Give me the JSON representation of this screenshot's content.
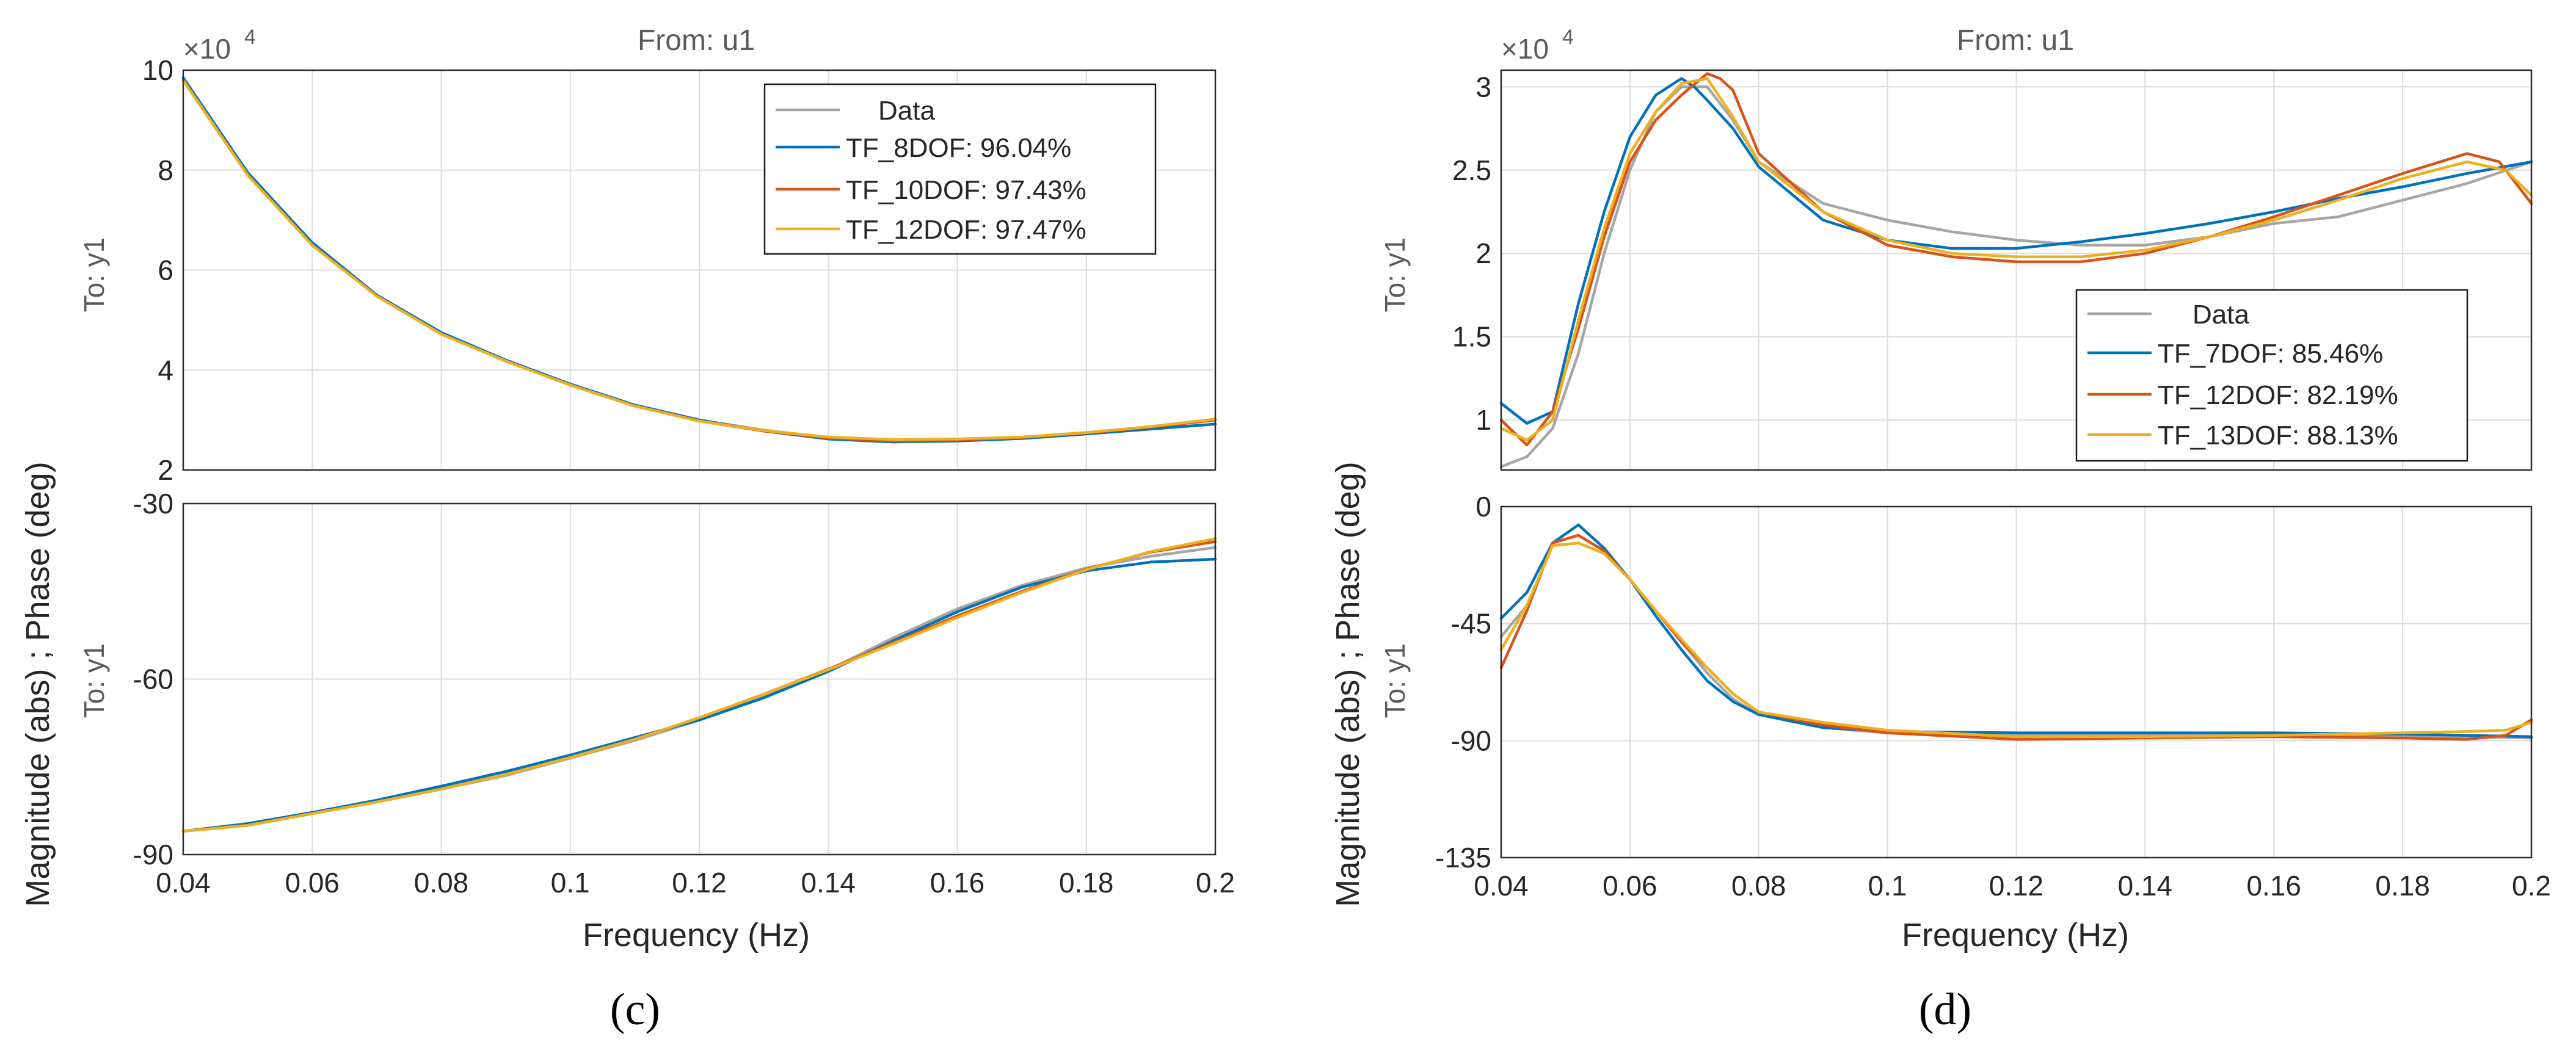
{
  "chart_data": [
    {
      "id": "c",
      "type": "line",
      "subplot_label": "(c)",
      "title": "From: u1",
      "ylabel": "Magnitude (abs) ; Phase (deg)",
      "xlabel": "Frequency  (Hz)",
      "x_ticks": [
        "0.04",
        "0.06",
        "0.08",
        "0.1",
        "0.12",
        "0.14",
        "0.16",
        "0.18",
        "0.2"
      ],
      "xlim": [
        0.04,
        0.2
      ],
      "colors": {
        "Data": "#a6a6a6",
        "TF_8DOF": "#0072bd",
        "TF_10DOF": "#d95319",
        "TF_12DOF": "#edb120"
      },
      "magnitude": {
        "row_label": "To: y1",
        "exponent_label": "×10",
        "exponent_power": "4",
        "ylim": [
          2,
          10
        ],
        "y_ticks": [
          "10",
          "8",
          "6",
          "4",
          "2"
        ],
        "legend": [
          "Data",
          "TF_8DOF: 96.04%",
          "TF_10DOF: 97.43%",
          "TF_12DOF: 97.47%"
        ],
        "series": [
          {
            "name": "Data",
            "x": [
              0.04,
              0.05,
              0.06,
              0.07,
              0.08,
              0.09,
              0.1,
              0.11,
              0.12,
              0.13,
              0.14,
              0.15,
              0.16,
              0.17,
              0.18,
              0.19,
              0.2
            ],
            "values": [
              9.8,
              7.9,
              6.5,
              5.5,
              4.75,
              4.2,
              3.7,
              3.3,
              3.0,
              2.8,
              2.65,
              2.6,
              2.6,
              2.65,
              2.75,
              2.85,
              3.0
            ]
          },
          {
            "name": "TF_8DOF",
            "x": [
              0.04,
              0.05,
              0.06,
              0.07,
              0.08,
              0.09,
              0.1,
              0.11,
              0.12,
              0.13,
              0.14,
              0.15,
              0.16,
              0.17,
              0.18,
              0.19,
              0.2
            ],
            "values": [
              9.85,
              7.95,
              6.55,
              5.5,
              4.75,
              4.2,
              3.72,
              3.3,
              3.0,
              2.78,
              2.62,
              2.56,
              2.58,
              2.63,
              2.72,
              2.82,
              2.92
            ]
          },
          {
            "name": "TF_10DOF",
            "x": [
              0.04,
              0.05,
              0.06,
              0.07,
              0.08,
              0.09,
              0.1,
              0.11,
              0.12,
              0.13,
              0.14,
              0.15,
              0.16,
              0.17,
              0.18,
              0.19,
              0.2
            ],
            "values": [
              9.8,
              7.9,
              6.5,
              5.48,
              4.72,
              4.18,
              3.7,
              3.28,
              2.98,
              2.78,
              2.64,
              2.58,
              2.6,
              2.65,
              2.74,
              2.86,
              3.0
            ]
          },
          {
            "name": "TF_12DOF",
            "x": [
              0.04,
              0.05,
              0.06,
              0.07,
              0.08,
              0.09,
              0.1,
              0.11,
              0.12,
              0.13,
              0.14,
              0.15,
              0.16,
              0.17,
              0.18,
              0.19,
              0.2
            ],
            "values": [
              9.8,
              7.9,
              6.5,
              5.48,
              4.72,
              4.18,
              3.7,
              3.28,
              2.98,
              2.79,
              2.66,
              2.61,
              2.62,
              2.66,
              2.75,
              2.87,
              3.02
            ]
          }
        ]
      },
      "phase": {
        "row_label": "To: y1",
        "ylim": [
          -90,
          -30
        ],
        "y_ticks": [
          "-30",
          "-60",
          "-90"
        ],
        "series": [
          {
            "name": "Data",
            "x": [
              0.04,
              0.05,
              0.06,
              0.07,
              0.08,
              0.09,
              0.1,
              0.11,
              0.12,
              0.13,
              0.14,
              0.15,
              0.16,
              0.17,
              0.18,
              0.19,
              0.2
            ],
            "values": [
              -86,
              -85,
              -83,
              -81,
              -78.8,
              -76.5,
              -73.5,
              -70.5,
              -67,
              -63,
              -58.5,
              -53,
              -48,
              -44,
              -41,
              -39,
              -37.5
            ]
          },
          {
            "name": "TF_8DOF",
            "x": [
              0.04,
              0.05,
              0.06,
              0.07,
              0.08,
              0.09,
              0.1,
              0.11,
              0.12,
              0.13,
              0.14,
              0.15,
              0.16,
              0.17,
              0.18,
              0.19,
              0.2
            ],
            "values": [
              -86,
              -84.7,
              -82.8,
              -80.7,
              -78.3,
              -75.8,
              -73,
              -70,
              -67,
              -63.2,
              -58.7,
              -53.5,
              -48.5,
              -44.3,
              -41.5,
              -40,
              -39.5
            ]
          },
          {
            "name": "TF_10DOF",
            "x": [
              0.04,
              0.05,
              0.06,
              0.07,
              0.08,
              0.09,
              0.1,
              0.11,
              0.12,
              0.13,
              0.14,
              0.15,
              0.16,
              0.17,
              0.18,
              0.19,
              0.2
            ],
            "values": [
              -86,
              -85,
              -83,
              -81,
              -78.8,
              -76.3,
              -73.4,
              -70.3,
              -66.6,
              -62.6,
              -58.3,
              -53.8,
              -49.2,
              -45,
              -41.2,
              -38.3,
              -36.5
            ]
          },
          {
            "name": "TF_12DOF",
            "x": [
              0.04,
              0.05,
              0.06,
              0.07,
              0.08,
              0.09,
              0.1,
              0.11,
              0.12,
              0.13,
              0.14,
              0.15,
              0.16,
              0.17,
              0.18,
              0.19,
              0.2
            ],
            "values": [
              -86,
              -85,
              -83,
              -81,
              -78.8,
              -76.3,
              -73.4,
              -70.3,
              -66.6,
              -62.6,
              -58.4,
              -54,
              -49.5,
              -45.2,
              -41.3,
              -38.2,
              -36
            ]
          }
        ]
      }
    },
    {
      "id": "d",
      "type": "line",
      "subplot_label": "(d)",
      "title": "From: u1",
      "ylabel": "Magnitude (abs) ; Phase (deg)",
      "xlabel": "Frequency  (Hz)",
      "x_ticks": [
        "0.04",
        "0.06",
        "0.08",
        "0.1",
        "0.12",
        "0.14",
        "0.16",
        "0.18",
        "0.2"
      ],
      "xlim": [
        0.04,
        0.2
      ],
      "colors": {
        "Data": "#a6a6a6",
        "TF_7DOF": "#0072bd",
        "TF_12DOF": "#d95319",
        "TF_13DOF": "#edb120"
      },
      "magnitude": {
        "row_label": "To: y1",
        "exponent_label": "×10",
        "exponent_power": "4",
        "ylim": [
          0.7,
          3.1
        ],
        "y_ticks": [
          "3",
          "2.5",
          "2",
          "1.5",
          "1"
        ],
        "legend": [
          "Data",
          "TF_7DOF: 85.46%",
          "TF_12DOF: 82.19%",
          "TF_13DOF: 88.13%"
        ],
        "series": [
          {
            "name": "Data",
            "x": [
              0.04,
              0.044,
              0.048,
              0.052,
              0.056,
              0.06,
              0.064,
              0.068,
              0.072,
              0.076,
              0.08,
              0.09,
              0.1,
              0.11,
              0.12,
              0.13,
              0.14,
              0.15,
              0.16,
              0.17,
              0.18,
              0.19,
              0.2
            ],
            "values": [
              0.72,
              0.78,
              0.95,
              1.4,
              2.0,
              2.5,
              2.85,
              3.0,
              3.0,
              2.8,
              2.55,
              2.3,
              2.2,
              2.13,
              2.08,
              2.05,
              2.05,
              2.1,
              2.18,
              2.22,
              2.32,
              2.42,
              2.55
            ]
          },
          {
            "name": "TF_7DOF",
            "x": [
              0.04,
              0.044,
              0.048,
              0.052,
              0.056,
              0.06,
              0.064,
              0.068,
              0.07,
              0.072,
              0.076,
              0.08,
              0.09,
              0.1,
              0.11,
              0.12,
              0.13,
              0.14,
              0.15,
              0.16,
              0.17,
              0.18,
              0.19,
              0.2
            ],
            "values": [
              1.1,
              0.98,
              1.05,
              1.7,
              2.25,
              2.7,
              2.95,
              3.05,
              3.0,
              2.92,
              2.75,
              2.52,
              2.2,
              2.08,
              2.03,
              2.03,
              2.07,
              2.12,
              2.18,
              2.25,
              2.33,
              2.4,
              2.48,
              2.55
            ]
          },
          {
            "name": "TF_12DOF",
            "x": [
              0.04,
              0.044,
              0.048,
              0.052,
              0.056,
              0.06,
              0.064,
              0.068,
              0.072,
              0.074,
              0.076,
              0.08,
              0.09,
              0.1,
              0.11,
              0.12,
              0.13,
              0.14,
              0.15,
              0.16,
              0.17,
              0.18,
              0.19,
              0.195,
              0.2
            ],
            "values": [
              1.0,
              0.85,
              1.05,
              1.55,
              2.1,
              2.55,
              2.8,
              2.95,
              3.08,
              3.05,
              2.98,
              2.6,
              2.25,
              2.05,
              1.98,
              1.95,
              1.95,
              2.0,
              2.1,
              2.22,
              2.35,
              2.48,
              2.6,
              2.55,
              2.3
            ]
          },
          {
            "name": "TF_13DOF",
            "x": [
              0.04,
              0.044,
              0.048,
              0.052,
              0.056,
              0.06,
              0.064,
              0.068,
              0.072,
              0.076,
              0.08,
              0.09,
              0.1,
              0.11,
              0.12,
              0.13,
              0.14,
              0.15,
              0.16,
              0.17,
              0.18,
              0.19,
              0.196,
              0.2
            ],
            "values": [
              0.95,
              0.88,
              1.0,
              1.6,
              2.15,
              2.6,
              2.85,
              3.02,
              3.05,
              2.82,
              2.55,
              2.25,
              2.08,
              2.0,
              1.98,
              1.98,
              2.02,
              2.1,
              2.2,
              2.32,
              2.45,
              2.55,
              2.5,
              2.35
            ]
          }
        ]
      },
      "phase": {
        "row_label": "To: y1",
        "ylim": [
          -135,
          0
        ],
        "y_ticks": [
          "0",
          "-45",
          "-90",
          "-135"
        ],
        "series": [
          {
            "name": "Data",
            "x": [
              0.04,
              0.044,
              0.048,
              0.052,
              0.056,
              0.06,
              0.064,
              0.068,
              0.072,
              0.076,
              0.08,
              0.09,
              0.1,
              0.12,
              0.14,
              0.16,
              0.18,
              0.2
            ],
            "values": [
              -50,
              -38,
              -15,
              -14,
              -18,
              -28,
              -40,
              -52,
              -64,
              -74,
              -80,
              -85,
              -87,
              -88,
              -88,
              -88,
              -88,
              -89
            ]
          },
          {
            "name": "TF_7DOF",
            "x": [
              0.04,
              0.044,
              0.048,
              0.052,
              0.056,
              0.06,
              0.064,
              0.068,
              0.072,
              0.076,
              0.08,
              0.09,
              0.1,
              0.12,
              0.14,
              0.16,
              0.18,
              0.2
            ],
            "values": [
              -43,
              -33,
              -14,
              -7,
              -16,
              -28,
              -42,
              -55,
              -67,
              -75,
              -80,
              -85,
              -86.5,
              -87,
              -87,
              -87,
              -87.5,
              -88.5
            ]
          },
          {
            "name": "TF_12DOF",
            "x": [
              0.04,
              0.044,
              0.048,
              0.052,
              0.056,
              0.06,
              0.064,
              0.068,
              0.072,
              0.076,
              0.08,
              0.09,
              0.1,
              0.12,
              0.14,
              0.16,
              0.18,
              0.19,
              0.196,
              0.2
            ],
            "values": [
              -62,
              -40,
              -14,
              -11,
              -17,
              -28,
              -40,
              -52,
              -62,
              -72,
              -79,
              -84,
              -87,
              -89.5,
              -89,
              -88.5,
              -89,
              -89.5,
              -88,
              -82
            ]
          },
          {
            "name": "TF_13DOF",
            "x": [
              0.04,
              0.044,
              0.048,
              0.052,
              0.056,
              0.06,
              0.064,
              0.068,
              0.072,
              0.076,
              0.08,
              0.09,
              0.1,
              0.12,
              0.14,
              0.16,
              0.18,
              0.19,
              0.196,
              0.2
            ],
            "values": [
              -55,
              -38,
              -15,
              -14,
              -18,
              -28,
              -40,
              -51,
              -62,
              -72,
              -79,
              -83,
              -86,
              -88.5,
              -88.5,
              -88,
              -87,
              -86.5,
              -86,
              -83
            ]
          }
        ]
      }
    }
  ]
}
